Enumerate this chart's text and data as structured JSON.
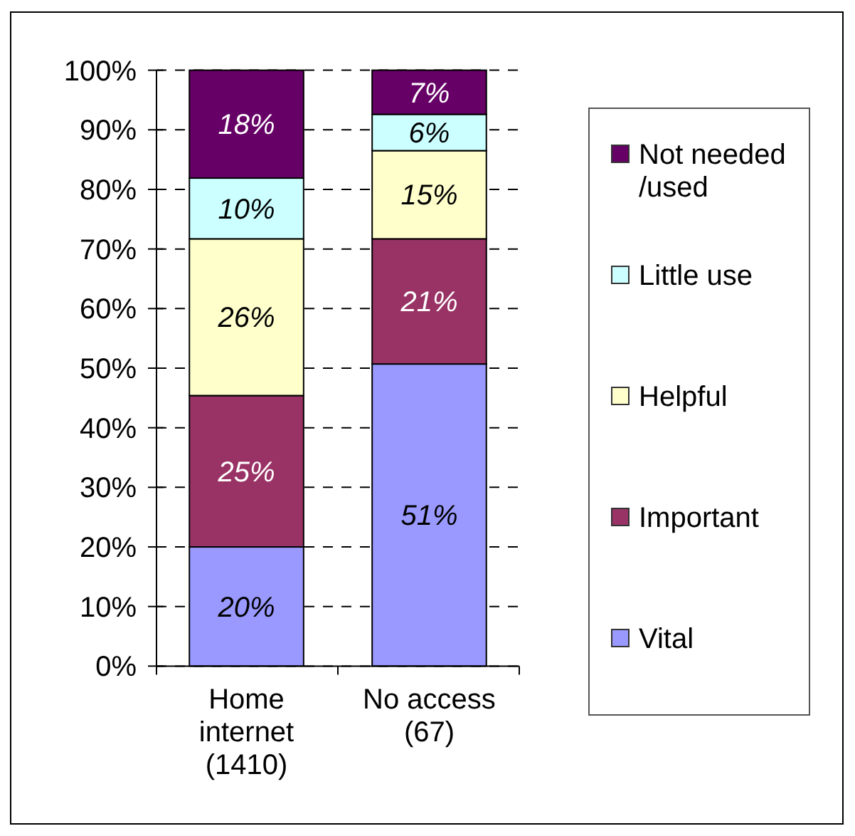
{
  "chart_data": {
    "type": "bar",
    "stacked": true,
    "categories": [
      "Home internet (1410)",
      "No access (67)"
    ],
    "series": [
      {
        "name": "Vital",
        "color": "#9999ff",
        "values": [
          20.0,
          50.7
        ],
        "value_labels": [
          "20%",
          "51%"
        ]
      },
      {
        "name": "Important",
        "color": "#993366",
        "values": [
          25.4,
          21.0
        ],
        "value_labels": [
          "25%",
          "21%"
        ]
      },
      {
        "name": "Helpful",
        "color": "#ffffcc",
        "values": [
          26.3,
          14.8
        ],
        "value_labels": [
          "26%",
          "15%"
        ]
      },
      {
        "name": "Little use",
        "color": "#ccffff",
        "values": [
          10.2,
          6.1
        ],
        "value_labels": [
          "10%",
          "6%"
        ]
      },
      {
        "name": "Not needed /used",
        "color": "#660066",
        "values": [
          18.1,
          7.4
        ],
        "value_labels": [
          "18%",
          "7%"
        ]
      }
    ],
    "ylim": [
      0,
      100
    ],
    "yticks": [
      {
        "value": 0,
        "label": "0%"
      },
      {
        "value": 10,
        "label": "10%"
      },
      {
        "value": 20,
        "label": "20%"
      },
      {
        "value": 30,
        "label": "30%"
      },
      {
        "value": 40,
        "label": "40%"
      },
      {
        "value": 50,
        "label": "50%"
      },
      {
        "value": 60,
        "label": "60%"
      },
      {
        "value": 70,
        "label": "70%"
      },
      {
        "value": 80,
        "label": "80%"
      },
      {
        "value": 90,
        "label": "90%"
      },
      {
        "value": 100,
        "label": "100%"
      }
    ],
    "grid": "y",
    "legend": "right"
  }
}
